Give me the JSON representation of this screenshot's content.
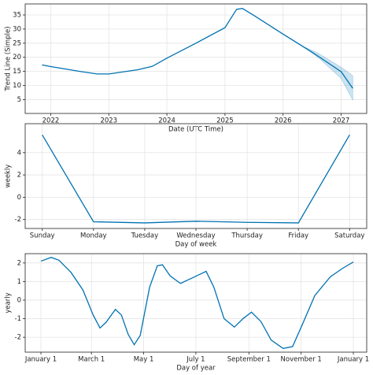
{
  "chart_data": [
    {
      "type": "line",
      "xlabel": "Date (UTC Time)",
      "ylabel": "Trend Line (Simple)",
      "x": [
        2021.85,
        2022.0,
        2022.5,
        2022.8,
        2023.0,
        2023.5,
        2023.75,
        2024.0,
        2024.5,
        2025.0,
        2025.2,
        2025.3,
        2025.5,
        2026.0,
        2026.5,
        2027.0,
        2027.2
      ],
      "series": [
        {
          "color": "#0072B2",
          "values": [
            17.3,
            16.7,
            15.0,
            14.1,
            14.1,
            15.6,
            16.8,
            19.7,
            25.0,
            30.5,
            37.0,
            37.3,
            34.8,
            28.2,
            21.8,
            14.9,
            9.0
          ]
        }
      ],
      "band": {
        "color": "#0072B2",
        "x": [
          2026.3,
          2026.6,
          2027.0,
          2027.2
        ],
        "lower": [
          24.3,
          20.0,
          12.5,
          4.8
        ],
        "upper": [
          24.3,
          21.5,
          16.5,
          13.5
        ]
      },
      "xlim": [
        2021.56,
        2027.44
      ],
      "xticks": [
        2022,
        2023,
        2024,
        2025,
        2026,
        2027
      ],
      "ylim": [
        0.1,
        38.9
      ],
      "yticks": [
        5,
        10,
        15,
        20,
        25,
        30,
        35
      ],
      "grid": true
    },
    {
      "type": "line",
      "xlabel": "Day of week",
      "ylabel": "weekly",
      "categories": [
        "Sunday",
        "Monday",
        "Tuesday",
        "Wednesday",
        "Thursday",
        "Friday",
        "Saturday"
      ],
      "series": [
        {
          "color": "#0072B2",
          "values": [
            5.6,
            -2.2,
            -2.3,
            -2.15,
            -2.25,
            -2.3,
            5.6
          ]
        }
      ],
      "ylim": [
        -2.8,
        6.6
      ],
      "yticks": [
        -2,
        0,
        2,
        4
      ],
      "grid": true
    },
    {
      "type": "line",
      "xlabel": "Day of year",
      "ylabel": "yearly",
      "x": [
        0,
        12,
        21,
        35,
        49,
        61,
        69,
        76,
        87,
        94,
        102,
        109,
        116,
        127,
        136,
        142,
        151,
        163,
        177,
        193,
        202,
        214,
        226,
        236,
        246,
        257,
        269,
        283,
        294,
        306,
        320,
        338,
        352,
        365
      ],
      "series": [
        {
          "color": "#0072B2",
          "values": [
            2.1,
            2.3,
            2.15,
            1.5,
            0.55,
            -0.8,
            -1.5,
            -1.2,
            -0.5,
            -0.8,
            -1.85,
            -2.4,
            -1.9,
            0.7,
            1.85,
            1.9,
            1.3,
            0.9,
            1.2,
            1.55,
            0.7,
            -1.0,
            -1.45,
            -1.0,
            -0.65,
            -1.15,
            -2.15,
            -2.6,
            -2.5,
            -1.25,
            0.25,
            1.25,
            1.7,
            2.05
          ]
        }
      ],
      "xlim": [
        -18.4,
        380.6
      ],
      "xticks": [
        {
          "value": 0,
          "label": "January 1"
        },
        {
          "value": 59,
          "label": "March 1"
        },
        {
          "value": 120,
          "label": "May 1"
        },
        {
          "value": 181,
          "label": "July 1"
        },
        {
          "value": 243,
          "label": "September 1"
        },
        {
          "value": 304,
          "label": "November 1"
        },
        {
          "value": 365,
          "label": "January 1"
        }
      ],
      "ylim": [
        -2.8,
        2.5
      ],
      "yticks": [
        -2,
        -1,
        0,
        1,
        2
      ],
      "grid": true
    }
  ]
}
